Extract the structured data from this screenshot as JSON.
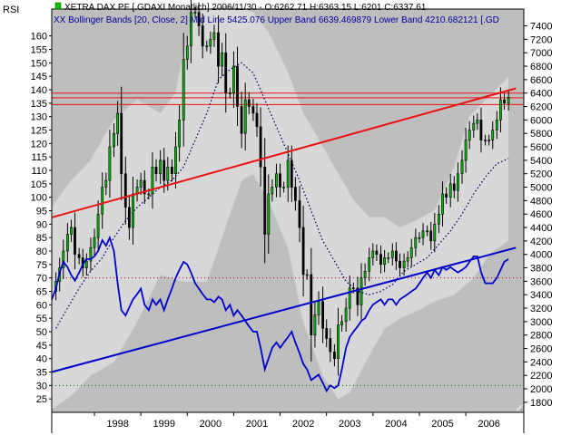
{
  "chart_data": {
    "type": "line",
    "header": {
      "price_text": "XETRA DAX PF [.GDAXI  Monatlich] 2006/11/30 - O:6262.71 H:6363.15 L:6201 C:6337.61",
      "bb_text": "XX Bollinger Bands [20, Close, 2] Mid Line 5425.076  Upper Band 6639.469879  Lower Band 4210.682121  [.GD"
    },
    "rsi_axis_label": "RSI",
    "left_axis": {
      "range": [
        20,
        170
      ],
      "ticks": [
        25,
        30,
        35,
        40,
        45,
        50,
        55,
        60,
        65,
        70,
        75,
        80,
        85,
        90,
        95,
        100,
        105,
        110,
        115,
        120,
        125,
        130,
        135,
        140,
        145,
        150,
        155,
        160
      ]
    },
    "right_axis": {
      "range": [
        1650,
        7650
      ],
      "ticks": [
        1800,
        2000,
        2200,
        2400,
        2600,
        2800,
        3000,
        3200,
        3400,
        3600,
        3800,
        4000,
        4200,
        4400,
        4600,
        4800,
        5000,
        5200,
        5400,
        5600,
        5800,
        6000,
        6200,
        6400,
        6600,
        6800,
        7000,
        7200,
        7400
      ]
    },
    "x_axis": {
      "range": [
        1997.08,
        2007.25
      ],
      "ticks": [
        "1998",
        "1999",
        "2000",
        "2001",
        "2002",
        "2003",
        "2004",
        "2005",
        "2006"
      ]
    },
    "colors": {
      "up": "#00bb00",
      "down": "#000000",
      "rsi": "#0000cc",
      "resistance": "#ee1111",
      "support": "#0000cc",
      "band": "#d8d8d8",
      "plot_bg": "#bebebe"
    },
    "price_close": [
      [
        1997.17,
        3600
      ],
      [
        1997.25,
        3800
      ],
      [
        1997.33,
        4050
      ],
      [
        1997.42,
        4300
      ],
      [
        1997.5,
        4400
      ],
      [
        1997.58,
        4000
      ],
      [
        1997.67,
        3950
      ],
      [
        1997.75,
        3800
      ],
      [
        1997.83,
        3900
      ],
      [
        1997.92,
        4100
      ],
      [
        1998.0,
        4250
      ],
      [
        1998.08,
        4600
      ],
      [
        1998.17,
        5000
      ],
      [
        1998.25,
        5100
      ],
      [
        1998.33,
        5600
      ],
      [
        1998.42,
        5800
      ],
      [
        1998.5,
        6100
      ],
      [
        1998.58,
        5200
      ],
      [
        1998.67,
        4700
      ],
      [
        1998.75,
        4400
      ],
      [
        1998.83,
        4900
      ],
      [
        1998.92,
        5000
      ],
      [
        1999.0,
        5100
      ],
      [
        1999.08,
        4900
      ],
      [
        1999.17,
        4900
      ],
      [
        1999.25,
        5300
      ],
      [
        1999.33,
        5200
      ],
      [
        1999.42,
        5400
      ],
      [
        1999.5,
        5100
      ],
      [
        1999.58,
        5300
      ],
      [
        1999.67,
        5200
      ],
      [
        1999.75,
        5600
      ],
      [
        1999.83,
        6000
      ],
      [
        1999.92,
        6900
      ],
      [
        2000.0,
        7100
      ],
      [
        2000.08,
        7600
      ],
      [
        2000.17,
        7600
      ],
      [
        2000.25,
        7400
      ],
      [
        2000.33,
        7100
      ],
      [
        2000.42,
        7100
      ],
      [
        2000.5,
        7200
      ],
      [
        2000.58,
        7300
      ],
      [
        2000.67,
        6800
      ],
      [
        2000.75,
        7000
      ],
      [
        2000.83,
        6400
      ],
      [
        2000.92,
        6400
      ],
      [
        2001.0,
        6800
      ],
      [
        2001.08,
        6200
      ],
      [
        2001.17,
        5800
      ],
      [
        2001.25,
        6300
      ],
      [
        2001.33,
        6200
      ],
      [
        2001.42,
        6100
      ],
      [
        2001.5,
        5900
      ],
      [
        2001.58,
        5300
      ],
      [
        2001.67,
        4300
      ],
      [
        2001.75,
        4900
      ],
      [
        2001.83,
        5000
      ],
      [
        2001.92,
        5200
      ],
      [
        2002.0,
        5000
      ],
      [
        2002.08,
        5000
      ],
      [
        2002.17,
        5400
      ],
      [
        2002.25,
        5000
      ],
      [
        2002.33,
        4800
      ],
      [
        2002.42,
        4400
      ],
      [
        2002.5,
        3700
      ],
      [
        2002.58,
        3700
      ],
      [
        2002.67,
        2800
      ],
      [
        2002.75,
        3100
      ],
      [
        2002.83,
        3300
      ],
      [
        2002.92,
        2900
      ],
      [
        2003.0,
        2750
      ],
      [
        2003.08,
        2550
      ],
      [
        2003.17,
        2450
      ],
      [
        2003.25,
        2950
      ],
      [
        2003.33,
        3000
      ],
      [
        2003.42,
        3200
      ],
      [
        2003.5,
        3500
      ],
      [
        2003.58,
        3500
      ],
      [
        2003.67,
        3250
      ],
      [
        2003.75,
        3650
      ],
      [
        2003.83,
        3750
      ],
      [
        2003.92,
        3950
      ],
      [
        2004.0,
        4050
      ],
      [
        2004.08,
        4000
      ],
      [
        2004.17,
        3850
      ],
      [
        2004.25,
        3950
      ],
      [
        2004.33,
        3950
      ],
      [
        2004.42,
        4050
      ],
      [
        2004.5,
        3900
      ],
      [
        2004.58,
        3800
      ],
      [
        2004.67,
        3900
      ],
      [
        2004.75,
        3950
      ],
      [
        2004.83,
        4100
      ],
      [
        2004.92,
        4250
      ],
      [
        2005.0,
        4250
      ],
      [
        2005.08,
        4350
      ],
      [
        2005.17,
        4350
      ],
      [
        2005.25,
        4200
      ],
      [
        2005.33,
        4450
      ],
      [
        2005.42,
        4600
      ],
      [
        2005.5,
        4900
      ],
      [
        2005.58,
        4850
      ],
      [
        2005.67,
        5050
      ],
      [
        2005.75,
        4950
      ],
      [
        2005.83,
        5200
      ],
      [
        2005.92,
        5400
      ],
      [
        2006.0,
        5700
      ],
      [
        2006.08,
        5850
      ],
      [
        2006.17,
        5950
      ],
      [
        2006.25,
        6000
      ],
      [
        2006.33,
        5700
      ],
      [
        2006.42,
        5700
      ],
      [
        2006.5,
        5700
      ],
      [
        2006.58,
        5850
      ],
      [
        2006.67,
        6000
      ],
      [
        2006.75,
        6300
      ],
      [
        2006.83,
        6250
      ],
      [
        2006.92,
        6340
      ]
    ],
    "bollinger_mid": [
      [
        1997.17,
        2900
      ],
      [
        1997.42,
        3200
      ],
      [
        1997.67,
        3500
      ],
      [
        1997.92,
        3750
      ],
      [
        1998.17,
        3950
      ],
      [
        1998.42,
        4250
      ],
      [
        1998.67,
        4500
      ],
      [
        1998.92,
        4700
      ],
      [
        1999.17,
        4850
      ],
      [
        1999.42,
        5000
      ],
      [
        1999.67,
        5100
      ],
      [
        1999.92,
        5300
      ],
      [
        2000.17,
        5700
      ],
      [
        2000.42,
        6100
      ],
      [
        2000.67,
        6600
      ],
      [
        2000.92,
        6750
      ],
      [
        2001.17,
        6850
      ],
      [
        2001.42,
        6700
      ],
      [
        2001.67,
        6300
      ],
      [
        2001.92,
        5900
      ],
      [
        2002.17,
        5500
      ],
      [
        2002.42,
        5100
      ],
      [
        2002.67,
        4650
      ],
      [
        2002.92,
        4200
      ],
      [
        2003.17,
        3900
      ],
      [
        2003.42,
        3600
      ],
      [
        2003.67,
        3450
      ],
      [
        2003.92,
        3400
      ],
      [
        2004.17,
        3450
      ],
      [
        2004.42,
        3550
      ],
      [
        2004.67,
        3750
      ],
      [
        2004.92,
        3850
      ],
      [
        2005.17,
        3950
      ],
      [
        2005.42,
        4150
      ],
      [
        2005.67,
        4350
      ],
      [
        2005.92,
        4600
      ],
      [
        2006.17,
        4900
      ],
      [
        2006.42,
        5150
      ],
      [
        2006.67,
        5350
      ],
      [
        2006.92,
        5425
      ]
    ],
    "bollinger_upper": [
      [
        1997.08,
        4700
      ],
      [
        1997.5,
        5100
      ],
      [
        1997.92,
        5400
      ],
      [
        1998.42,
        6000
      ],
      [
        1998.92,
        6300
      ],
      [
        1999.42,
        6100
      ],
      [
        1999.75,
        6400
      ],
      [
        1999.92,
        7000
      ],
      [
        2000.17,
        7600
      ],
      [
        2000.5,
        7650
      ],
      [
        2000.92,
        7700
      ],
      [
        2001.42,
        7600
      ],
      [
        2001.75,
        7300
      ],
      [
        2002.17,
        6700
      ],
      [
        2002.5,
        6100
      ],
      [
        2002.92,
        5600
      ],
      [
        2003.25,
        5200
      ],
      [
        2003.58,
        4800
      ],
      [
        2003.92,
        4550
      ],
      [
        2004.25,
        4550
      ],
      [
        2004.58,
        4400
      ],
      [
        2004.92,
        4500
      ],
      [
        2005.33,
        4650
      ],
      [
        2005.75,
        5300
      ],
      [
        2006.08,
        6050
      ],
      [
        2006.5,
        6350
      ],
      [
        2006.92,
        6640
      ]
    ],
    "bollinger_lower": [
      [
        1997.08,
        1700
      ],
      [
        1997.5,
        1900
      ],
      [
        1997.92,
        2200
      ],
      [
        1998.42,
        2400
      ],
      [
        1998.92,
        3000
      ],
      [
        1999.42,
        3700
      ],
      [
        1999.92,
        3600
      ],
      [
        2000.42,
        3600
      ],
      [
        2000.92,
        4600
      ],
      [
        2001.17,
        5100
      ],
      [
        2001.42,
        5200
      ],
      [
        2001.75,
        4800
      ],
      [
        2002.17,
        4100
      ],
      [
        2002.5,
        3000
      ],
      [
        2002.92,
        2200
      ],
      [
        2003.25,
        1850
      ],
      [
        2003.5,
        1950
      ],
      [
        2003.92,
        2500
      ],
      [
        2004.25,
        2900
      ],
      [
        2004.58,
        3050
      ],
      [
        2004.92,
        3150
      ],
      [
        2005.33,
        3300
      ],
      [
        2005.75,
        3400
      ],
      [
        2006.17,
        3650
      ],
      [
        2006.5,
        4000
      ],
      [
        2006.92,
        4210
      ]
    ],
    "rsi": [
      [
        1997.08,
        62
      ],
      [
        1997.17,
        66
      ],
      [
        1997.25,
        72
      ],
      [
        1997.33,
        76
      ],
      [
        1997.42,
        74
      ],
      [
        1997.5,
        71
      ],
      [
        1997.58,
        69
      ],
      [
        1997.67,
        72
      ],
      [
        1997.75,
        75
      ],
      [
        1997.83,
        77
      ],
      [
        1997.92,
        77
      ],
      [
        1998.0,
        78
      ],
      [
        1998.08,
        80
      ],
      [
        1998.17,
        84
      ],
      [
        1998.25,
        82
      ],
      [
        1998.33,
        85
      ],
      [
        1998.42,
        80
      ],
      [
        1998.5,
        68
      ],
      [
        1998.58,
        58
      ],
      [
        1998.67,
        56
      ],
      [
        1998.75,
        59
      ],
      [
        1998.83,
        62
      ],
      [
        1998.92,
        64
      ],
      [
        1999.0,
        66
      ],
      [
        1999.08,
        60
      ],
      [
        1999.17,
        58
      ],
      [
        1999.25,
        62
      ],
      [
        1999.33,
        60
      ],
      [
        1999.42,
        62
      ],
      [
        1999.5,
        58
      ],
      [
        1999.58,
        62
      ],
      [
        1999.67,
        66
      ],
      [
        1999.75,
        70
      ],
      [
        1999.83,
        73
      ],
      [
        1999.92,
        76
      ],
      [
        2000.0,
        75
      ],
      [
        2000.08,
        72
      ],
      [
        2000.17,
        68
      ],
      [
        2000.25,
        66
      ],
      [
        2000.33,
        64
      ],
      [
        2000.42,
        62
      ],
      [
        2000.5,
        62
      ],
      [
        2000.58,
        61
      ],
      [
        2000.67,
        63
      ],
      [
        2000.75,
        62
      ],
      [
        2000.83,
        58
      ],
      [
        2000.92,
        60
      ],
      [
        2001.0,
        56
      ],
      [
        2001.08,
        58
      ],
      [
        2001.17,
        56
      ],
      [
        2001.25,
        54
      ],
      [
        2001.33,
        52
      ],
      [
        2001.42,
        50
      ],
      [
        2001.5,
        50
      ],
      [
        2001.58,
        44
      ],
      [
        2001.67,
        36
      ],
      [
        2001.75,
        40
      ],
      [
        2001.83,
        44
      ],
      [
        2001.92,
        46
      ],
      [
        2002.0,
        44
      ],
      [
        2002.08,
        46
      ],
      [
        2002.17,
        48
      ],
      [
        2002.25,
        50
      ],
      [
        2002.33,
        46
      ],
      [
        2002.42,
        42
      ],
      [
        2002.5,
        38
      ],
      [
        2002.58,
        36
      ],
      [
        2002.67,
        32
      ],
      [
        2002.75,
        33
      ],
      [
        2002.83,
        34
      ],
      [
        2002.92,
        31
      ],
      [
        2003.0,
        28
      ],
      [
        2003.08,
        30
      ],
      [
        2003.17,
        29
      ],
      [
        2003.25,
        30
      ],
      [
        2003.33,
        36
      ],
      [
        2003.42,
        44
      ],
      [
        2003.5,
        48
      ],
      [
        2003.58,
        50
      ],
      [
        2003.67,
        52
      ],
      [
        2003.75,
        54
      ],
      [
        2003.83,
        55
      ],
      [
        2003.92,
        58
      ],
      [
        2004.0,
        60
      ],
      [
        2004.08,
        61
      ],
      [
        2004.17,
        62
      ],
      [
        2004.25,
        60
      ],
      [
        2004.33,
        62
      ],
      [
        2004.42,
        62
      ],
      [
        2004.5,
        60
      ],
      [
        2004.58,
        62
      ],
      [
        2004.67,
        63
      ],
      [
        2004.75,
        64
      ],
      [
        2004.83,
        65
      ],
      [
        2004.92,
        66
      ],
      [
        2005.0,
        68
      ],
      [
        2005.08,
        70
      ],
      [
        2005.17,
        72
      ],
      [
        2005.25,
        70
      ],
      [
        2005.33,
        73
      ],
      [
        2005.42,
        71
      ],
      [
        2005.5,
        74
      ],
      [
        2005.58,
        73
      ],
      [
        2005.67,
        74
      ],
      [
        2005.75,
        73
      ],
      [
        2005.83,
        72
      ],
      [
        2005.92,
        73
      ],
      [
        2006.0,
        74
      ],
      [
        2006.08,
        76
      ],
      [
        2006.17,
        78
      ],
      [
        2006.25,
        78
      ],
      [
        2006.33,
        72
      ],
      [
        2006.42,
        68
      ],
      [
        2006.5,
        68
      ],
      [
        2006.58,
        68
      ],
      [
        2006.67,
        70
      ],
      [
        2006.75,
        73
      ],
      [
        2006.83,
        76
      ],
      [
        2006.92,
        77
      ]
    ],
    "rsi_reference_levels": [
      70,
      30
    ],
    "resistance_trendline": [
      [
        1997.08,
        4550
      ],
      [
        2007.08,
        6470
      ]
    ],
    "support_trendline": [
      [
        1997.08,
        2250
      ],
      [
        2007.08,
        4100
      ]
    ],
    "horizontal_resistance": [
      6230,
      6330,
      6400
    ],
    "grid": false,
    "legend": "none"
  }
}
